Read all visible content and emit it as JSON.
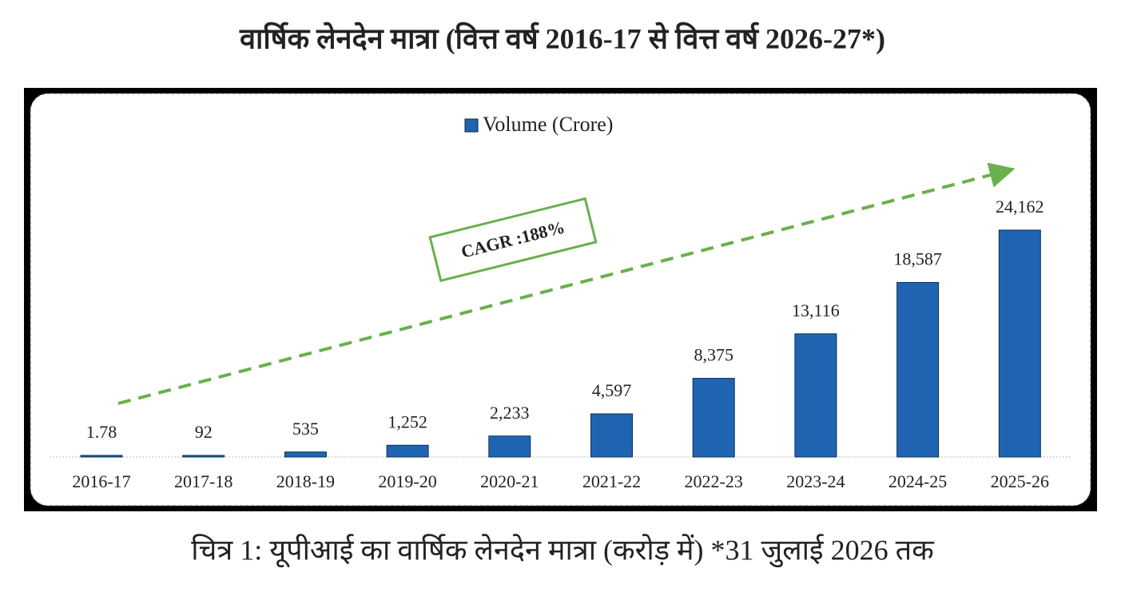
{
  "chart_data": {
    "type": "bar",
    "title": "वार्षिक लेनदेन मात्रा (वित्त वर्ष 2016-17 से वित्त वर्ष 2026-27*)",
    "caption": "चित्र 1: यूपीआई का वार्षिक लेनदेन मात्रा (करोड़ में) *31 जुलाई 2026 तक",
    "annotation": "CAGR :188%",
    "categories": [
      "2016-17",
      "2017-18",
      "2018-19",
      "2019-20",
      "2020-21",
      "2021-22",
      "2022-23",
      "2023-24",
      "2024-25",
      "2025-26"
    ],
    "series": [
      {
        "name": "Volume (Crore)",
        "color": "#1f64b0",
        "values": [
          1.78,
          92,
          535,
          1252,
          2233,
          4597,
          8375,
          13116,
          18587,
          24162
        ],
        "value_labels": [
          "1.78",
          "92",
          "535",
          "1,252",
          "2,233",
          "4,597",
          "8,375",
          "13,116",
          "18,587",
          "24,162"
        ]
      }
    ]
  }
}
